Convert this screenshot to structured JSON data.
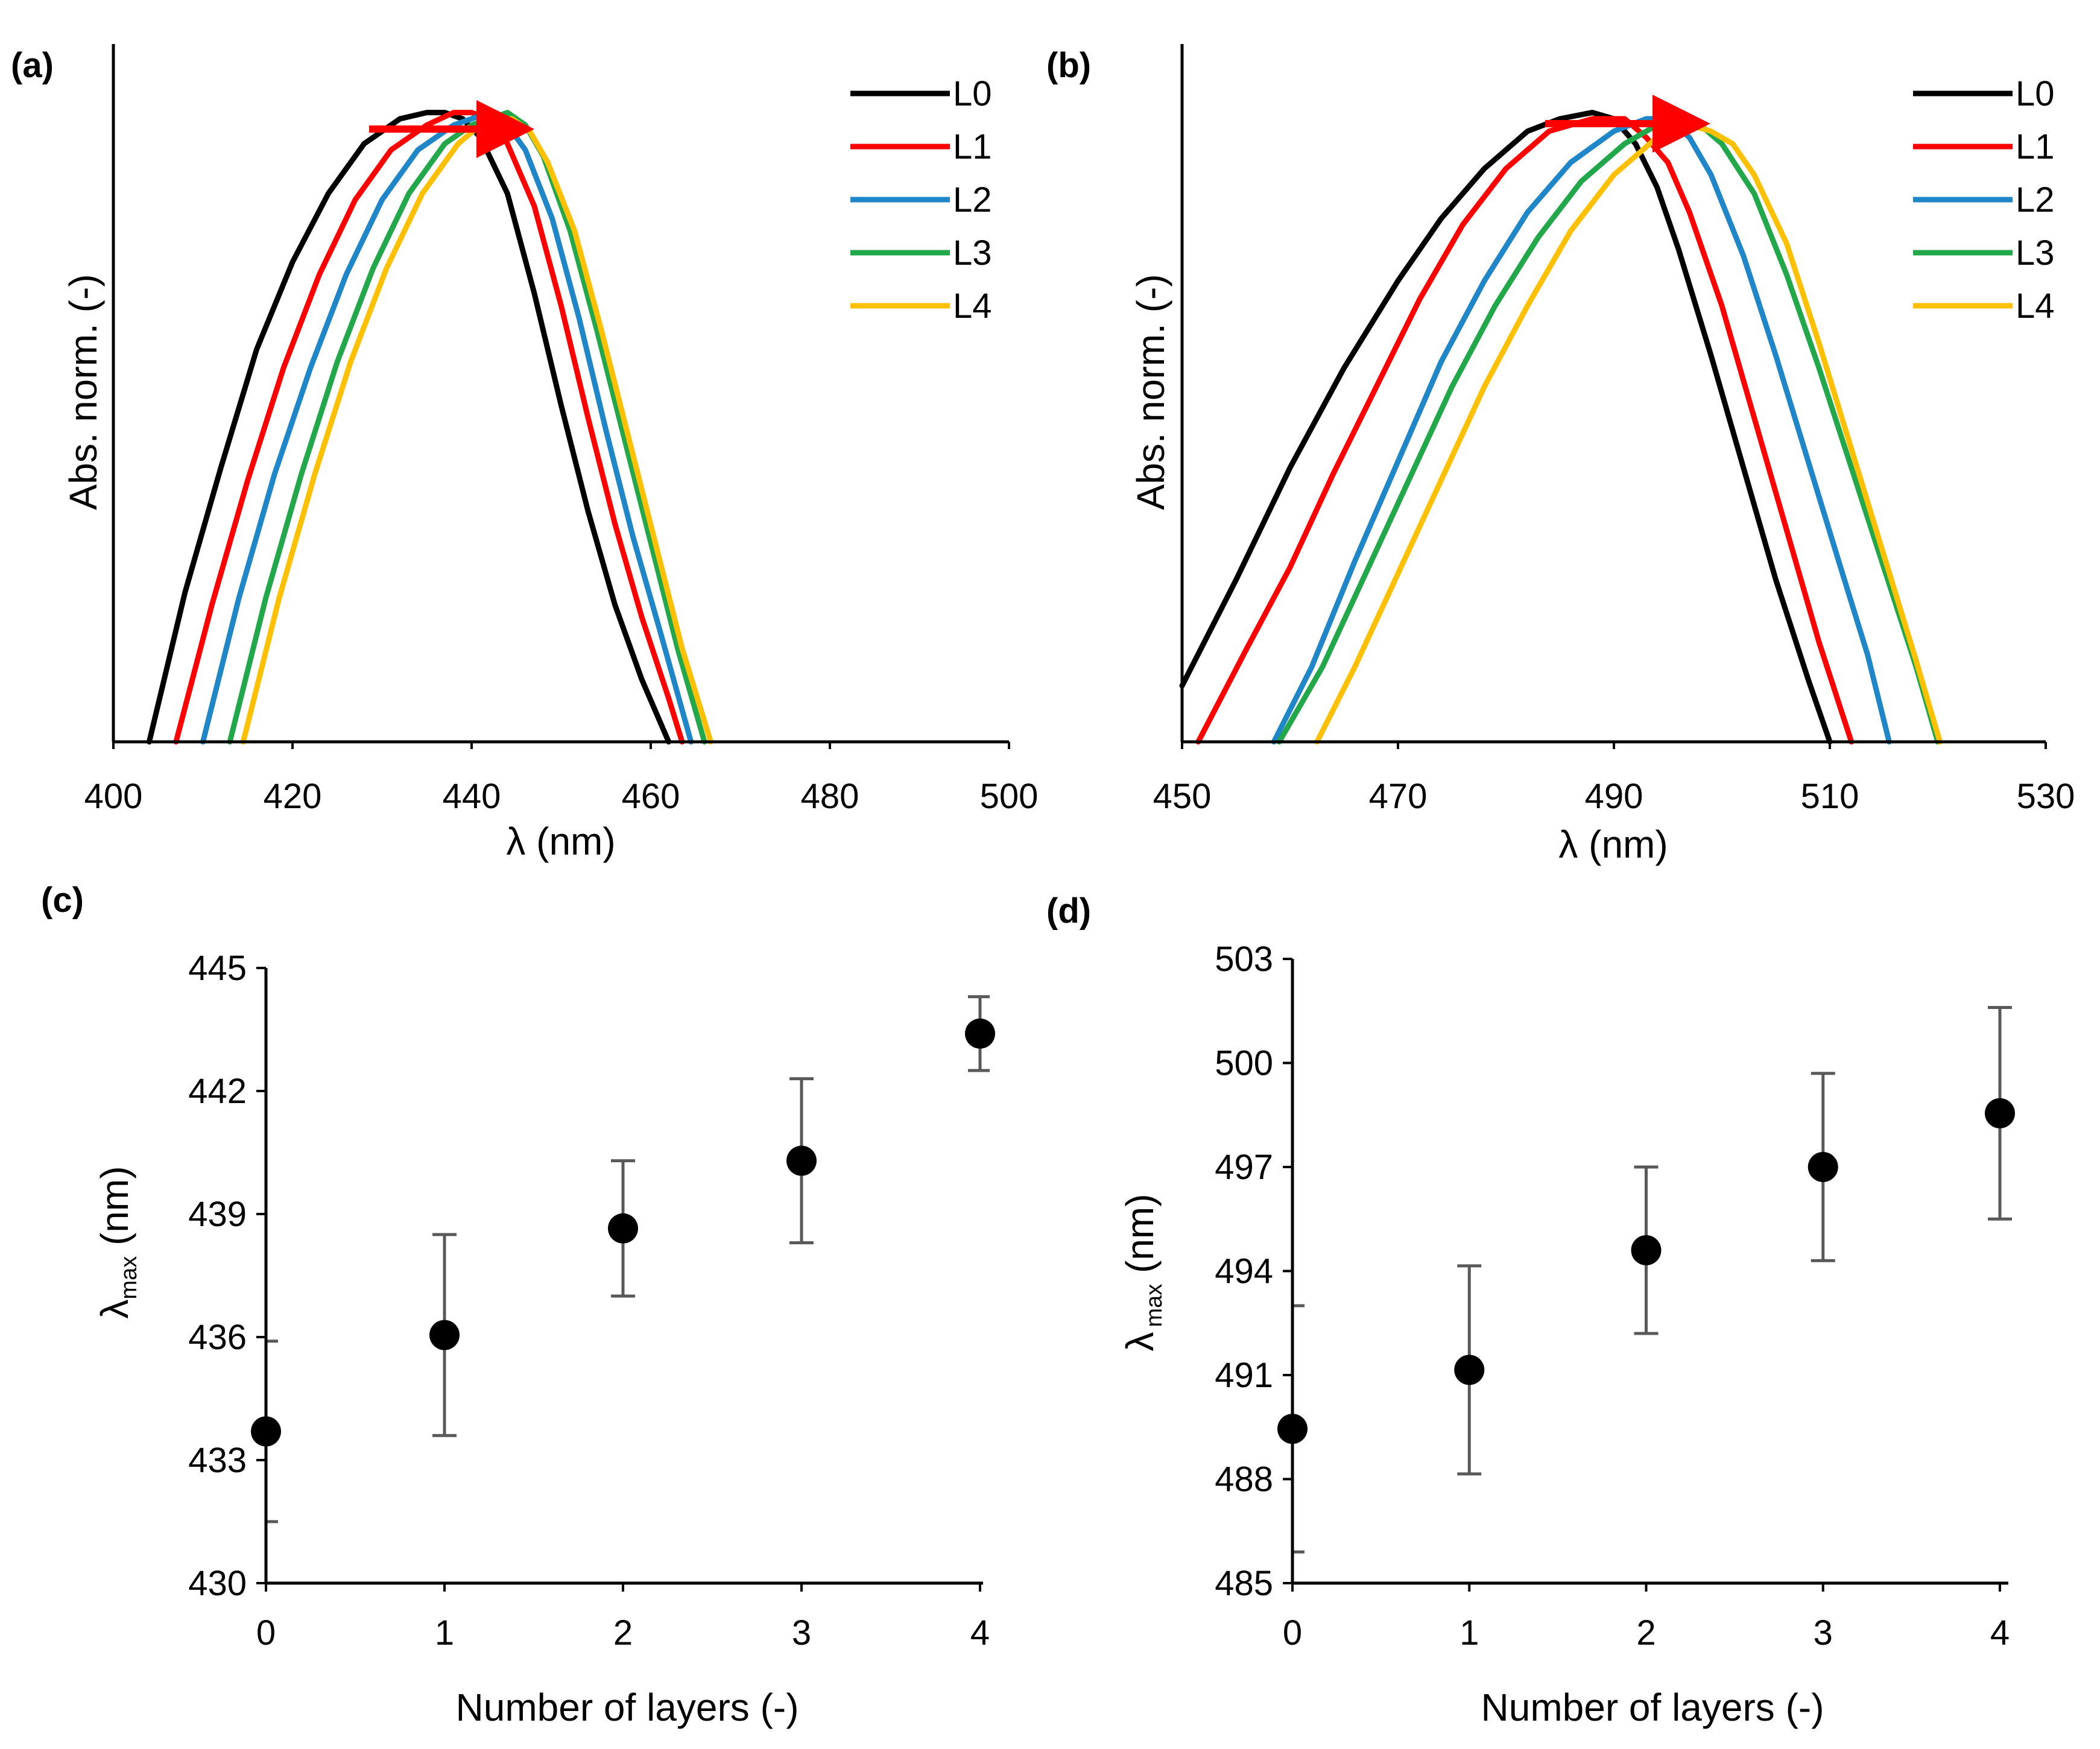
{
  "chart_data": [
    {
      "type": "line",
      "panel": "(a)",
      "title": "",
      "xlabel": "λ (nm)",
      "ylabel": "Abs. norm. (-)",
      "xlim": [
        400,
        500
      ],
      "ylim": [
        0,
        1.12
      ],
      "xticks": [
        400,
        420,
        440,
        460,
        480,
        500
      ],
      "yticks": [],
      "legend": "top-right",
      "annotation": "red arrow indicating red-shift of peak",
      "arrow_color": "#ff0000",
      "series": [
        {
          "name": "L0",
          "color": "#000000",
          "x": [
            404,
            408,
            412,
            416,
            420,
            424,
            428,
            432,
            435,
            437,
            439,
            441,
            444,
            447,
            450,
            453,
            456,
            459,
            462
          ],
          "y": [
            0.0,
            0.24,
            0.44,
            0.63,
            0.77,
            0.88,
            0.96,
            1.0,
            1.01,
            1.01,
            1.0,
            0.97,
            0.88,
            0.72,
            0.54,
            0.37,
            0.22,
            0.1,
            0.0
          ]
        },
        {
          "name": "L1",
          "color": "#ff0000",
          "x": [
            407,
            411,
            415,
            419,
            423,
            427,
            431,
            435,
            438,
            440,
            442,
            444,
            447,
            450,
            453,
            456,
            459,
            462,
            463.5
          ],
          "y": [
            0.0,
            0.22,
            0.42,
            0.6,
            0.75,
            0.87,
            0.95,
            0.99,
            1.01,
            1.01,
            1.0,
            0.96,
            0.86,
            0.7,
            0.52,
            0.35,
            0.2,
            0.07,
            0.0
          ]
        },
        {
          "name": "L2",
          "color": "#1f86c8",
          "x": [
            410,
            414,
            418,
            422,
            426,
            430,
            434,
            438,
            440,
            442,
            444,
            446,
            449,
            452,
            455,
            458,
            461,
            464.5
          ],
          "y": [
            0.0,
            0.23,
            0.43,
            0.6,
            0.75,
            0.87,
            0.95,
            0.99,
            1.0,
            1.01,
            0.99,
            0.95,
            0.84,
            0.68,
            0.5,
            0.33,
            0.18,
            0.0
          ]
        },
        {
          "name": "L3",
          "color": "#22a84a",
          "x": [
            413,
            417,
            421,
            425,
            429,
            433,
            437,
            440,
            442,
            444,
            446,
            448,
            451,
            454,
            457,
            460,
            463,
            466
          ],
          "y": [
            0.0,
            0.23,
            0.43,
            0.61,
            0.76,
            0.88,
            0.96,
            0.99,
            1.0,
            1.01,
            0.99,
            0.94,
            0.82,
            0.66,
            0.49,
            0.32,
            0.15,
            0.0
          ]
        },
        {
          "name": "L4",
          "color": "#ffc000",
          "x": [
            414.5,
            418.5,
            422.5,
            426.5,
            430.5,
            434.5,
            438.5,
            441,
            443,
            444.5,
            446.5,
            448.5,
            451.5,
            454.5,
            457.5,
            460.5,
            463.5,
            466.7
          ],
          "y": [
            0.0,
            0.23,
            0.43,
            0.61,
            0.76,
            0.88,
            0.96,
            0.99,
            1.0,
            1.0,
            0.98,
            0.93,
            0.82,
            0.66,
            0.49,
            0.32,
            0.15,
            0.0
          ]
        }
      ]
    },
    {
      "type": "line",
      "panel": "(b)",
      "title": "",
      "xlabel": "λ (nm)",
      "ylabel": "Abs. norm. (-)",
      "xlim": [
        450,
        530
      ],
      "ylim": [
        0,
        1.12
      ],
      "xticks": [
        450,
        470,
        490,
        510,
        530
      ],
      "yticks": [],
      "legend": "top-right",
      "annotation": "red arrow indicating red-shift of peak",
      "arrow_color": "#ff0000",
      "series": [
        {
          "name": "L0",
          "color": "#000000",
          "x": [
            450,
            455,
            460,
            465,
            470,
            474,
            478,
            482,
            485,
            488,
            490,
            492,
            494,
            496,
            499,
            502,
            505,
            508,
            510
          ],
          "y": [
            0.09,
            0.26,
            0.44,
            0.6,
            0.74,
            0.84,
            0.92,
            0.98,
            1.0,
            1.01,
            1.0,
            0.96,
            0.89,
            0.79,
            0.62,
            0.44,
            0.26,
            0.1,
            0.0
          ]
        },
        {
          "name": "L1",
          "color": "#ff0000",
          "x": [
            451.5,
            456,
            460,
            464,
            468,
            472,
            476,
            480,
            484,
            488,
            491,
            493,
            495,
            497,
            500,
            503,
            506,
            509,
            512
          ],
          "y": [
            0.0,
            0.15,
            0.28,
            0.43,
            0.57,
            0.71,
            0.83,
            0.92,
            0.98,
            1.0,
            1.0,
            0.97,
            0.93,
            0.85,
            0.7,
            0.52,
            0.34,
            0.16,
            0.0
          ]
        },
        {
          "name": "L2",
          "color": "#1f86c8",
          "x": [
            458.5,
            462,
            466,
            470,
            474,
            478,
            482,
            486,
            490,
            493,
            495,
            497,
            499,
            502,
            505,
            508,
            511,
            513.5,
            515.5
          ],
          "y": [
            0.0,
            0.12,
            0.29,
            0.45,
            0.61,
            0.74,
            0.85,
            0.93,
            0.98,
            1.0,
            1.0,
            0.97,
            0.91,
            0.78,
            0.62,
            0.45,
            0.28,
            0.14,
            0.0
          ]
        },
        {
          "name": "L3",
          "color": "#22a84a",
          "x": [
            459,
            463,
            467,
            471,
            475,
            479,
            483,
            487,
            491,
            494,
            496,
            498,
            500,
            503,
            506,
            509,
            512,
            515,
            518,
            520
          ],
          "y": [
            0.0,
            0.12,
            0.27,
            0.42,
            0.57,
            0.7,
            0.81,
            0.9,
            0.96,
            0.99,
            1.0,
            0.99,
            0.96,
            0.88,
            0.75,
            0.6,
            0.44,
            0.28,
            0.12,
            0.0
          ]
        },
        {
          "name": "L4",
          "color": "#ffc000",
          "x": [
            462.5,
            466,
            470,
            474,
            478,
            482,
            486,
            490,
            494,
            497,
            499,
            501,
            503,
            506,
            509,
            512,
            515,
            518,
            520.2
          ],
          "y": [
            0.0,
            0.12,
            0.27,
            0.42,
            0.57,
            0.7,
            0.82,
            0.91,
            0.97,
            0.99,
            0.98,
            0.96,
            0.91,
            0.8,
            0.64,
            0.47,
            0.3,
            0.13,
            0.0
          ]
        }
      ]
    },
    {
      "type": "scatter",
      "panel": "(c)",
      "title": "",
      "xlabel": "Number of layers (-)",
      "ylabel_main": "λ",
      "ylabel_sub": "max",
      "ylabel_unit": " (nm)",
      "xlim": [
        0,
        4
      ],
      "ylim": [
        430,
        445
      ],
      "xticks": [
        0,
        1,
        2,
        3,
        4
      ],
      "yticks": [
        430,
        433,
        436,
        439,
        442,
        445
      ],
      "x": [
        0,
        1,
        2,
        3,
        4
      ],
      "y": [
        433.7,
        436.05,
        438.65,
        440.3,
        443.4
      ],
      "yerr": [
        2.2,
        2.45,
        1.65,
        2.0,
        0.9
      ],
      "marker_color": "#000000",
      "errorbar_color": "#595959"
    },
    {
      "type": "scatter",
      "panel": "(d)",
      "title": "",
      "xlabel": "Number of layers (-)",
      "ylabel_main": "λ",
      "ylabel_sub": "max",
      "ylabel_unit": " (nm)",
      "xlim": [
        0,
        4
      ],
      "ylim": [
        485,
        503
      ],
      "xticks": [
        0,
        1,
        2,
        3,
        4
      ],
      "yticks": [
        485,
        488,
        491,
        494,
        497,
        500,
        503
      ],
      "x": [
        0,
        1,
        2,
        3,
        4
      ],
      "y": [
        489.45,
        491.15,
        494.6,
        497.0,
        498.55
      ],
      "yerr": [
        3.55,
        3.0,
        2.4,
        2.7,
        3.05
      ],
      "marker_color": "#000000",
      "errorbar_color": "#595959"
    }
  ]
}
